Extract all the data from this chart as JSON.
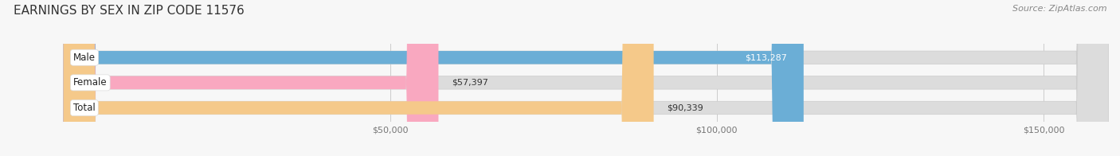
{
  "title": "EARNINGS BY SEX IN ZIP CODE 11576",
  "source": "Source: ZipAtlas.com",
  "categories": [
    "Male",
    "Female",
    "Total"
  ],
  "values": [
    113287,
    57397,
    90339
  ],
  "bar_colors": [
    "#6baed6",
    "#f9a8c0",
    "#f5c98a"
  ],
  "bar_bg_color": "#dcdcdc",
  "label_colors": [
    "white",
    "black",
    "black"
  ],
  "xlim": [
    -8000,
    160000
  ],
  "xticks": [
    50000,
    100000,
    150000
  ],
  "xtick_labels": [
    "$50,000",
    "$100,000",
    "$150,000"
  ],
  "bar_height": 0.52,
  "bar_gap": 0.25,
  "figsize": [
    14.06,
    1.96
  ],
  "dpi": 100,
  "title_fontsize": 11,
  "source_fontsize": 8,
  "label_fontsize": 8,
  "tick_fontsize": 8,
  "category_fontsize": 8.5,
  "bg_color": "#f7f7f7",
  "title_color": "#333333",
  "source_color": "#888888",
  "tick_color": "#777777",
  "grid_color": "#cccccc"
}
